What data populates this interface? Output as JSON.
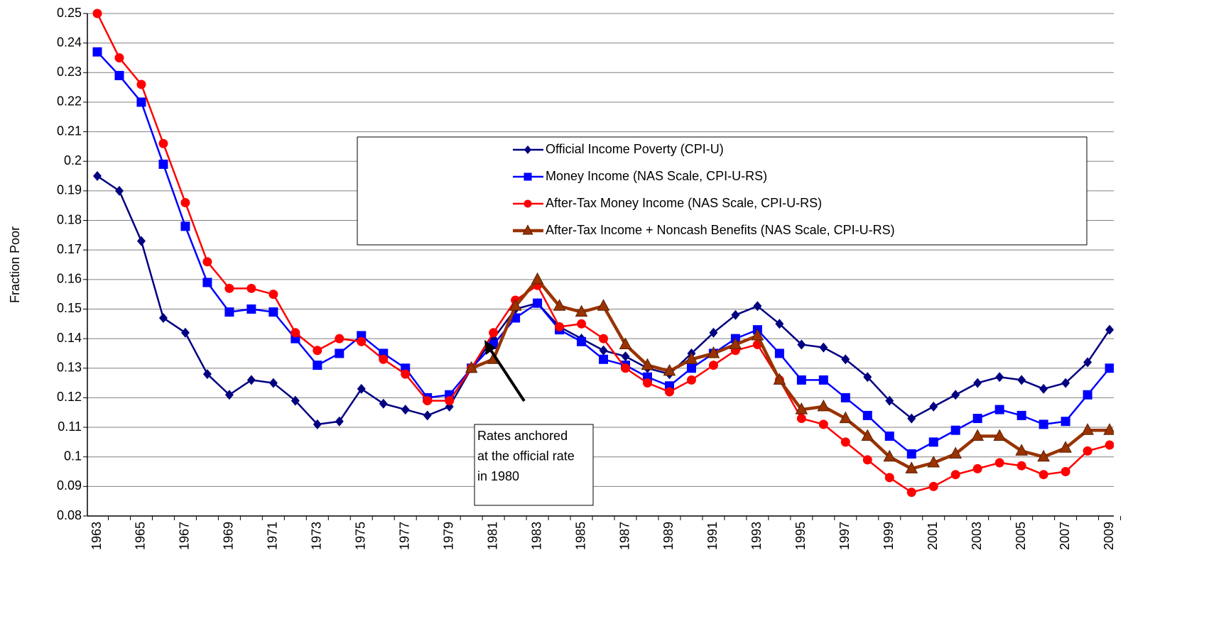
{
  "chart_data": {
    "type": "line",
    "y_label": "Fraction Poor",
    "categories": [
      "1963",
      null,
      "1965",
      null,
      "1967",
      null,
      "1969",
      null,
      "1971",
      null,
      "1973",
      null,
      "1975",
      null,
      "1977",
      null,
      "1979",
      null,
      "1981",
      null,
      "1983",
      null,
      "1985",
      null,
      "1987",
      null,
      "1989",
      null,
      "1991",
      null,
      "1993",
      null,
      "1995",
      null,
      "1997",
      null,
      "1999",
      null,
      "2001",
      null,
      "2003",
      null,
      "2005",
      null,
      "2007",
      null,
      "2009"
    ],
    "ylim": [
      0.08,
      0.25
    ],
    "yticks": [
      0.08,
      0.09,
      0.1,
      0.11,
      0.12,
      0.13,
      0.14,
      0.15,
      0.16,
      0.17,
      0.18,
      0.19,
      0.2,
      0.21,
      0.22,
      0.23,
      0.24,
      0.25
    ],
    "grid": true,
    "series": [
      {
        "name": "Official Income Poverty (CPI-U)",
        "color": "#000080",
        "marker": "diamond",
        "values": [
          0.195,
          0.19,
          0.173,
          0.147,
          0.142,
          0.128,
          0.121,
          0.126,
          0.125,
          0.119,
          0.111,
          0.112,
          0.123,
          0.118,
          0.116,
          0.114,
          0.117,
          0.13,
          0.14,
          0.15,
          0.152,
          0.144,
          0.14,
          0.136,
          0.134,
          0.13,
          0.128,
          0.135,
          0.142,
          0.148,
          0.151,
          0.145,
          0.138,
          0.137,
          0.133,
          0.127,
          0.119,
          0.113,
          0.117,
          0.121,
          0.125,
          0.127,
          0.126,
          0.123,
          0.125,
          0.132,
          0.143
        ]
      },
      {
        "name": "Money Income (NAS Scale, CPI-U-RS)",
        "color": "#0000ff",
        "marker": "square",
        "values": [
          0.237,
          0.229,
          0.22,
          0.199,
          0.178,
          0.159,
          0.149,
          0.15,
          0.149,
          0.14,
          0.131,
          0.135,
          0.141,
          0.135,
          0.13,
          0.12,
          0.121,
          0.13,
          0.138,
          0.147,
          0.152,
          0.143,
          0.139,
          0.133,
          0.131,
          0.127,
          0.124,
          0.13,
          0.135,
          0.14,
          0.143,
          0.135,
          0.126,
          0.126,
          0.12,
          0.114,
          0.107,
          0.101,
          0.105,
          0.109,
          0.113,
          0.116,
          0.114,
          0.111,
          0.112,
          0.121,
          0.13
        ]
      },
      {
        "name": "After-Tax Money Income (NAS Scale, CPI-U-RS)",
        "color": "#ff0000",
        "marker": "circle",
        "values": [
          0.25,
          0.235,
          0.226,
          0.206,
          0.186,
          0.166,
          0.157,
          0.157,
          0.155,
          0.142,
          0.136,
          0.14,
          0.139,
          0.133,
          0.128,
          0.119,
          0.119,
          0.13,
          0.142,
          0.153,
          0.158,
          0.144,
          0.145,
          0.14,
          0.13,
          0.125,
          0.122,
          0.126,
          0.131,
          0.136,
          0.138,
          0.126,
          0.113,
          0.111,
          0.105,
          0.099,
          0.093,
          0.088,
          0.09,
          0.094,
          0.096,
          0.098,
          0.097,
          0.094,
          0.095,
          0.102,
          0.104
        ]
      },
      {
        "name": "After-Tax Income + Noncash Benefits (NAS Scale, CPI-U-RS)",
        "color": "#993300",
        "marker": "triangle",
        "values": [
          null,
          null,
          null,
          null,
          null,
          null,
          null,
          null,
          null,
          null,
          null,
          null,
          null,
          null,
          null,
          null,
          null,
          0.13,
          0.133,
          0.151,
          0.16,
          0.151,
          0.149,
          0.151,
          0.138,
          0.131,
          0.129,
          0.133,
          0.135,
          0.138,
          0.141,
          0.126,
          0.116,
          0.117,
          0.113,
          0.107,
          0.1,
          0.096,
          0.098,
          0.101,
          0.107,
          0.107,
          0.102,
          0.1,
          0.103,
          0.109,
          0.109
        ]
      }
    ],
    "annotation": [
      "Rates anchored",
      "at the official rate",
      "in 1980"
    ]
  }
}
